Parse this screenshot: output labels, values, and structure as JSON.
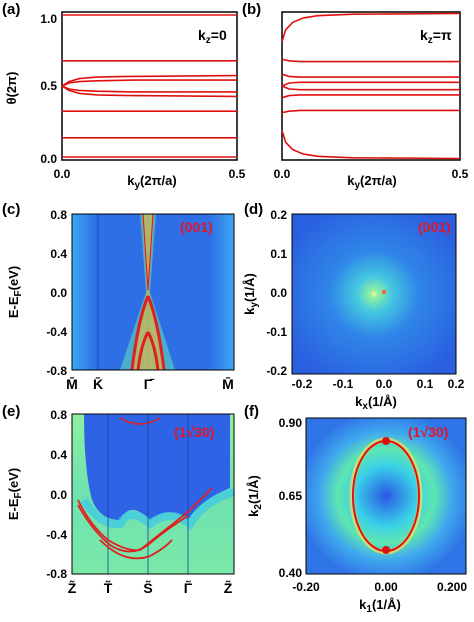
{
  "colors": {
    "band_red": "#e01010",
    "frame": "#000000",
    "tag_red": "#e4142a",
    "bg_blue": "#2a5fe0"
  },
  "chart_data": [
    {
      "panel": "a",
      "type": "line",
      "title": "",
      "tag": "k_z=0",
      "xlabel": "k_y(2π/a)",
      "ylabel": "θ(2π)",
      "xlim": [
        0,
        0.5
      ],
      "ylim": [
        0,
        1
      ],
      "xticks": [
        "0.0",
        "0.5"
      ],
      "yticks": [
        "0.0",
        "0.5",
        "1.0"
      ],
      "series": [
        {
          "x": [
            0,
            0.5
          ],
          "y": [
            0.98,
            0.98
          ]
        },
        {
          "x": [
            0,
            0.5
          ],
          "y": [
            0.67,
            0.67
          ]
        },
        {
          "x": [
            0,
            0.02,
            0.05,
            0.1,
            0.2,
            0.5
          ],
          "y": [
            0.5,
            0.53,
            0.55,
            0.56,
            0.565,
            0.57
          ]
        },
        {
          "x": [
            0,
            0.02,
            0.05,
            0.1,
            0.2,
            0.5
          ],
          "y": [
            0.5,
            0.52,
            0.53,
            0.535,
            0.54,
            0.54
          ]
        },
        {
          "x": [
            0,
            0.02,
            0.05,
            0.1,
            0.2,
            0.5
          ],
          "y": [
            0.5,
            0.48,
            0.47,
            0.465,
            0.46,
            0.46
          ]
        },
        {
          "x": [
            0,
            0.02,
            0.05,
            0.1,
            0.2,
            0.5
          ],
          "y": [
            0.5,
            0.47,
            0.45,
            0.44,
            0.435,
            0.43
          ]
        },
        {
          "x": [
            0,
            0.5
          ],
          "y": [
            0.33,
            0.33
          ]
        },
        {
          "x": [
            0,
            0.5
          ],
          "y": [
            0.15,
            0.15
          ]
        },
        {
          "x": [
            0,
            0.5
          ],
          "y": [
            0.02,
            0.02
          ]
        }
      ]
    },
    {
      "panel": "b",
      "type": "line",
      "title": "",
      "tag": "k_z=π",
      "xlabel": "k_y(2π/a)",
      "ylabel": "",
      "xlim": [
        0,
        0.5
      ],
      "ylim": [
        0,
        1
      ],
      "xticks": [
        "0.0",
        "0.5"
      ],
      "yticks": [],
      "series": [
        {
          "x": [
            0,
            0.01,
            0.03,
            0.06,
            0.1,
            0.2,
            0.5
          ],
          "y": [
            0.8,
            0.88,
            0.93,
            0.96,
            0.975,
            0.985,
            0.99
          ]
        },
        {
          "x": [
            0,
            0.02,
            0.05,
            0.5
          ],
          "y": [
            0.68,
            0.67,
            0.665,
            0.665
          ]
        },
        {
          "x": [
            0,
            0.02,
            0.05,
            0.5
          ],
          "y": [
            0.58,
            0.565,
            0.56,
            0.56
          ]
        },
        {
          "x": [
            0,
            0.02,
            0.05,
            0.5
          ],
          "y": [
            0.5,
            0.52,
            0.525,
            0.525
          ]
        },
        {
          "x": [
            0,
            0.02,
            0.05,
            0.5
          ],
          "y": [
            0.5,
            0.48,
            0.475,
            0.475
          ]
        },
        {
          "x": [
            0,
            0.02,
            0.05,
            0.5
          ],
          "y": [
            0.42,
            0.435,
            0.44,
            0.44
          ]
        },
        {
          "x": [
            0,
            0.02,
            0.05,
            0.5
          ],
          "y": [
            0.32,
            0.33,
            0.335,
            0.335
          ]
        },
        {
          "x": [
            0,
            0.01,
            0.03,
            0.06,
            0.1,
            0.2,
            0.5
          ],
          "y": [
            0.2,
            0.12,
            0.07,
            0.04,
            0.025,
            0.015,
            0.01
          ]
        }
      ]
    },
    {
      "panel": "c",
      "type": "heatmap",
      "title": "",
      "tag": "(001)",
      "ylabel": "E-E_F(eV)",
      "ylim": [
        -0.8,
        0.8
      ],
      "yticks": [
        "0.8",
        "0.4",
        "0.0",
        "-0.4",
        "-0.8"
      ],
      "xticks": [
        "M̄",
        "K̄",
        "Γ̄",
        "M̄"
      ]
    },
    {
      "panel": "d",
      "type": "heatmap",
      "title": "",
      "tag": "(001)",
      "xlabel": "k_x(1/Å)",
      "ylabel": "k_y(1/Å)",
      "xlim": [
        -0.2,
        0.2
      ],
      "ylim": [
        -0.2,
        0.2
      ],
      "xticks": [
        "-0.2",
        "-0.1",
        "0.0",
        "0.1",
        "0.2"
      ],
      "yticks": [
        "0.2",
        "0.1",
        "0.0",
        "-0.1",
        "-0.2"
      ]
    },
    {
      "panel": "e",
      "type": "heatmap",
      "title": "",
      "tag": "(1√30)",
      "ylabel": "E-E_F(eV)",
      "ylim": [
        -0.8,
        0.8
      ],
      "yticks": [
        "0.8",
        "0.4",
        "0.0",
        "-0.4",
        "-0.8"
      ],
      "xticks": [
        "Z̃",
        "T̃",
        "S̃",
        "Γ̃",
        "Z̃"
      ]
    },
    {
      "panel": "f",
      "type": "heatmap",
      "title": "",
      "tag": "(1√30)",
      "xlabel": "k_1(1/Å)",
      "ylabel": "k_2(1/Å)",
      "xlim": [
        -0.2,
        0.2
      ],
      "ylim": [
        0.4,
        0.9
      ],
      "xticks": [
        "-0.20",
        "0.00",
        "0.200"
      ],
      "yticks": [
        "0.90",
        "0.65",
        "0.40"
      ]
    }
  ],
  "panel_labels": [
    "(a)",
    "(b)",
    "(c)",
    "(d)",
    "(e)",
    "(f)"
  ]
}
